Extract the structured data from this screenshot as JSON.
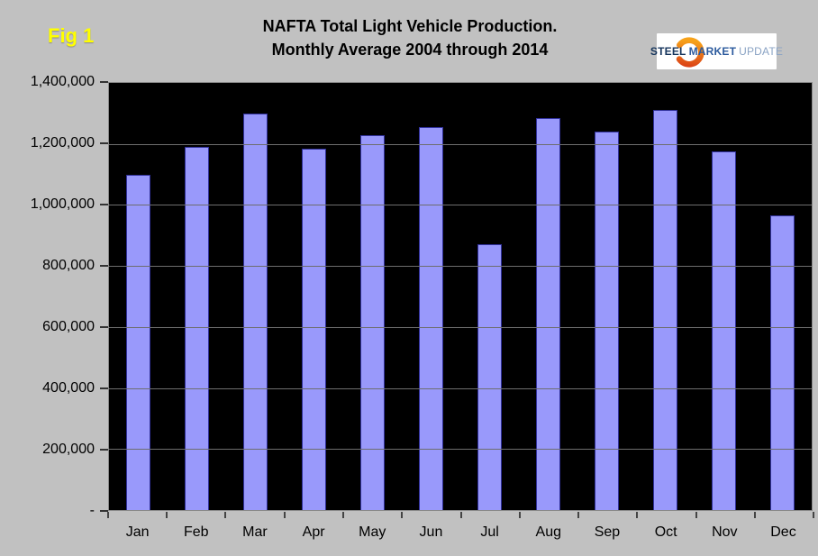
{
  "figure_label": "Fig 1",
  "title": {
    "line1": "NAFTA Total Light Vehicle Production.",
    "line2": "Monthly Average 2004 through 2014"
  },
  "logo": {
    "steel": "STEEL",
    "market": "MARKET",
    "update": "UPDATE"
  },
  "chart_data": {
    "type": "bar",
    "title": "NAFTA Total Light Vehicle Production. Monthly Average 2004 through 2014",
    "categories": [
      "Jan",
      "Feb",
      "Mar",
      "Apr",
      "May",
      "Jun",
      "Jul",
      "Aug",
      "Sep",
      "Oct",
      "Nov",
      "Dec"
    ],
    "values": [
      1100000,
      1190000,
      1300000,
      1185000,
      1230000,
      1255000,
      870000,
      1285000,
      1240000,
      1310000,
      1175000,
      965000
    ],
    "xlabel": "",
    "ylabel": "",
    "ylim": [
      0,
      1400000
    ],
    "ytick_interval": 200000,
    "ytick_labels_top_down": [
      "1,400,000",
      "1,200,000",
      "1,000,000",
      "800,000",
      "600,000",
      "400,000",
      "200,000",
      "-"
    ],
    "grid": true,
    "legend_position": "none"
  },
  "colors": {
    "background": "#c1c1c1",
    "plot_background": "#000000",
    "bar_fill": "#9999fb",
    "bar_border": "#30309a",
    "gridline": "#6e6e6e",
    "fig_label": "#ffff00",
    "logo_steel": "#17365d",
    "logo_market": "#2d5b9e",
    "logo_update": "#8aa3c4",
    "logo_crescent_start": "#d93a16",
    "logo_crescent_end": "#f7a21a"
  }
}
